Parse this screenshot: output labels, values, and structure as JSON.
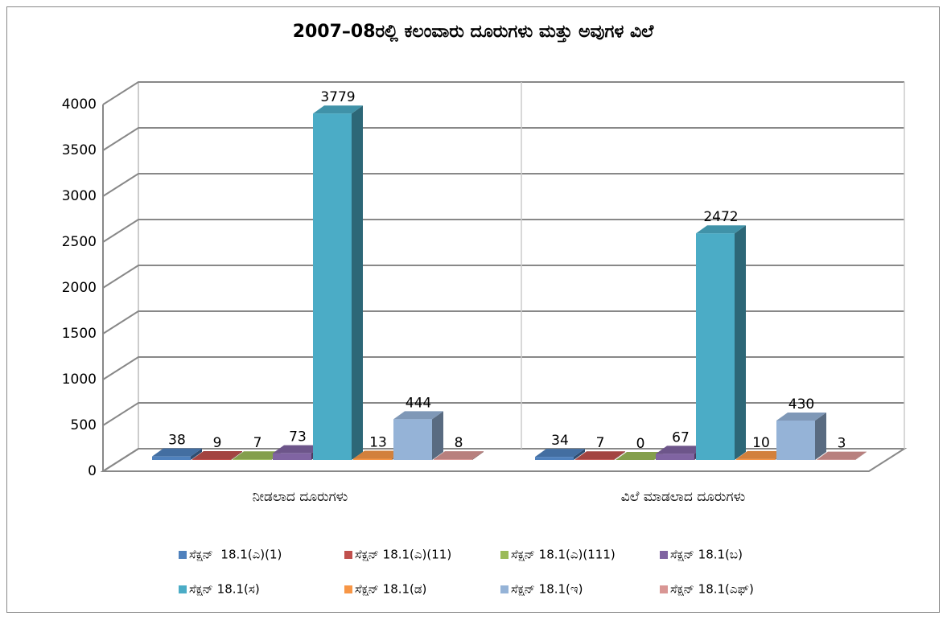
{
  "chart_data": {
    "type": "bar3d",
    "title": "2007–08ರಲ್ಲಿ ಕಲಂವಾರು ದೂರುಗಳು ಮತ್ತು ಅವುಗಳ ವಿಲೆ",
    "categories": [
      "ನೀಡಲಾದ ದೂರುಗಳು",
      "ವಿಲೆ ಮಾಡಲಾದ ದೂರುಗಳು"
    ],
    "series": [
      {
        "name": "ಸೆಕ್ಷನ್  18.1(ಎ)(1)",
        "color": "#4f81bd",
        "values": [
          38,
          34
        ]
      },
      {
        "name": "ಸೆಕ್ಷನ್ 18.1(ಎ)(11)",
        "color": "#c0504d",
        "values": [
          9,
          7
        ]
      },
      {
        "name": "ಸೆಕ್ಷನ್ 18.1(ಎ)(111)",
        "color": "#9bbb59",
        "values": [
          7,
          0
        ]
      },
      {
        "name": "ಸೆಕ್ಷನ್ 18.1(ಬ)",
        "color": "#8064a2",
        "values": [
          73,
          67
        ]
      },
      {
        "name": "ಸೆಕ್ಷನ್ 18.1(ಸ)",
        "color": "#4bacc6",
        "values": [
          3779,
          2472
        ]
      },
      {
        "name": "ಸೆಕ್ಷನ್ 18.1(ಡ)",
        "color": "#f79646",
        "values": [
          13,
          10
        ]
      },
      {
        "name": "ಸೆಕ್ಷನ್ 18.1(ಇ)",
        "color": "#95b3d7",
        "values": [
          444,
          430
        ]
      },
      {
        "name": "ಸೆಕ್ಷನ್ 18.1(ಎಫ್)",
        "color": "#d99694",
        "values": [
          8,
          3
        ]
      }
    ],
    "ylim": [
      0,
      4000
    ],
    "yticks": [
      0,
      500,
      1000,
      1500,
      2000,
      2500,
      3000,
      3500,
      4000
    ],
    "grid": true,
    "legend": "bottom"
  }
}
